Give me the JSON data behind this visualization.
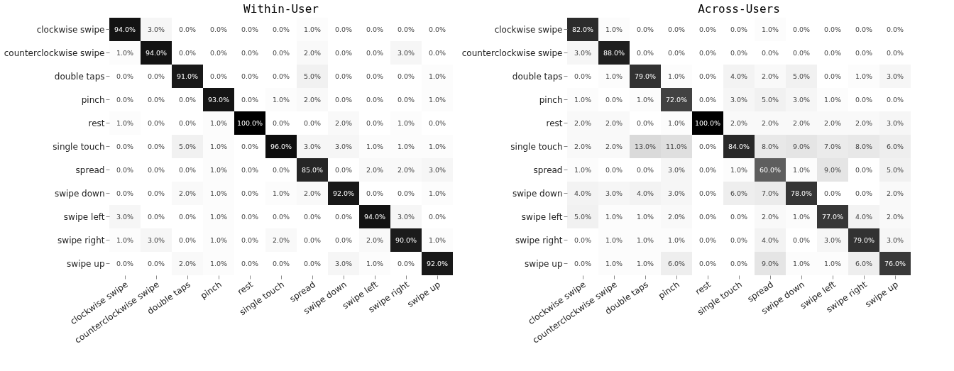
{
  "chart_data": [
    {
      "type": "heatmap",
      "title": "Within-User",
      "categories": [
        "clockwise swipe",
        "counterclockwise swipe",
        "double taps",
        "pinch",
        "rest",
        "single touch",
        "spread",
        "swipe down",
        "swipe left",
        "swipe right",
        "swipe up"
      ],
      "y_categories": [
        "clockwise swipe",
        "counterclockwise swipe",
        "double taps",
        "pinch",
        "rest",
        "single touch",
        "spread",
        "swipe down",
        "swipe left",
        "swipe right",
        "swipe up"
      ],
      "cells": [
        [
          94,
          3,
          0,
          0,
          0,
          0,
          1,
          0,
          0,
          0,
          0
        ],
        [
          1,
          94,
          0,
          0,
          0,
          0,
          2,
          0,
          0,
          3,
          0
        ],
        [
          0,
          0,
          91,
          0,
          0,
          0,
          5,
          0,
          0,
          0,
          1
        ],
        [
          0,
          0,
          0,
          93,
          0,
          1,
          2,
          0,
          0,
          0,
          1
        ],
        [
          1,
          0,
          0,
          1,
          100,
          0,
          0,
          2,
          0,
          1,
          0
        ],
        [
          0,
          0,
          5,
          1,
          0,
          96,
          3,
          3,
          1,
          1,
          1
        ],
        [
          0,
          0,
          0,
          1,
          0,
          0,
          85,
          0,
          2,
          2,
          3
        ],
        [
          0,
          0,
          2,
          1,
          0,
          1,
          2,
          92,
          0,
          0,
          1
        ],
        [
          3,
          0,
          0,
          1,
          0,
          0,
          0,
          0,
          94,
          3,
          0
        ],
        [
          1,
          3,
          0,
          1,
          0,
          2,
          0,
          0,
          2,
          90,
          1
        ],
        [
          0,
          0,
          2,
          1,
          0,
          0,
          0,
          3,
          1,
          0,
          92
        ]
      ],
      "cell_labels": [
        [
          "94.0%",
          "3.0%",
          "0.0%",
          "0.0%",
          "0.0%",
          "0.0%",
          "1.0%",
          "0.0%",
          "0.0%",
          "0.0%",
          "0.0%"
        ],
        [
          "1.0%",
          "94.0%",
          "0.0%",
          "0.0%",
          "0.0%",
          "0.0%",
          "2.0%",
          "0.0%",
          "0.0%",
          "3.0%",
          "0.0%"
        ],
        [
          "0.0%",
          "0.0%",
          "91.0%",
          "0.0%",
          "0.0%",
          "0.0%",
          "5.0%",
          "0.0%",
          "0.0%",
          "0.0%",
          "1.0%"
        ],
        [
          "0.0%",
          "0.0%",
          "0.0%",
          "93.0%",
          "0.0%",
          "1.0%",
          "2.0%",
          "0.0%",
          "0.0%",
          "0.0%",
          "1.0%"
        ],
        [
          "1.0%",
          "0.0%",
          "0.0%",
          "1.0%",
          "100.0%",
          "0.0%",
          "0.0%",
          "2.0%",
          "0.0%",
          "1.0%",
          "0.0%"
        ],
        [
          "0.0%",
          "0.0%",
          "5.0%",
          "1.0%",
          "0.0%",
          "96.0%",
          "3.0%",
          "3.0%",
          "1.0%",
          "1.0%",
          "1.0%"
        ],
        [
          "0.0%",
          "0.0%",
          "0.0%",
          "1.0%",
          "0.0%",
          "0.0%",
          "85.0%",
          "0.0%",
          "2.0%",
          "2.0%",
          "3.0%"
        ],
        [
          "0.0%",
          "0.0%",
          "2.0%",
          "1.0%",
          "0.0%",
          "1.0%",
          "2.0%",
          "92.0%",
          "0.0%",
          "0.0%",
          "1.0%"
        ],
        [
          "3.0%",
          "0.0%",
          "0.0%",
          "1.0%",
          "0.0%",
          "0.0%",
          "0.0%",
          "0.0%",
          "94.0%",
          "3.0%",
          "0.0%"
        ],
        [
          "1.0%",
          "3.0%",
          "0.0%",
          "1.0%",
          "0.0%",
          "2.0%",
          "0.0%",
          "0.0%",
          "2.0%",
          "90.0%",
          "1.0%"
        ],
        [
          "0.0%",
          "0.0%",
          "2.0%",
          "1.0%",
          "0.0%",
          "0.0%",
          "0.0%",
          "3.0%",
          "1.0%",
          "0.0%",
          "92.0%"
        ]
      ]
    },
    {
      "type": "heatmap",
      "title": "Across-Users",
      "categories": [
        "clockwise swipe",
        "counterclockwise swipe",
        "double taps",
        "pinch",
        "rest",
        "single touch",
        "spread",
        "swipe down",
        "swipe left",
        "swipe right",
        "swipe up"
      ],
      "y_categories": [
        "clockwise swipe",
        "counterclockwise swipe",
        "double taps",
        "pinch",
        "rest",
        "single touch",
        "spread",
        "swipe down",
        "swipe left",
        "swipe right",
        "swipe up"
      ],
      "cells": [
        [
          82,
          1,
          0,
          0,
          0,
          0,
          1,
          0,
          0,
          0,
          0
        ],
        [
          3,
          88,
          0,
          0,
          0,
          0,
          0,
          0,
          0,
          0,
          0
        ],
        [
          0,
          1,
          79,
          1,
          0,
          4,
          2,
          5,
          0,
          1,
          3
        ],
        [
          1,
          0,
          1,
          72,
          0,
          3,
          5,
          3,
          1,
          0,
          0
        ],
        [
          2,
          2,
          0,
          1,
          100,
          2,
          2,
          2,
          2,
          2,
          3
        ],
        [
          2,
          2,
          13,
          11,
          0,
          84,
          8,
          9,
          7,
          8,
          6
        ],
        [
          1,
          0,
          0,
          3,
          0,
          1,
          60,
          1,
          9,
          0,
          5
        ],
        [
          4,
          3,
          4,
          3,
          0,
          6,
          7,
          78,
          0,
          0,
          2
        ],
        [
          5,
          1,
          1,
          2,
          0,
          0,
          2,
          1,
          77,
          4,
          2
        ],
        [
          0,
          1,
          1,
          1,
          0,
          0,
          4,
          0,
          3,
          79,
          3
        ],
        [
          0,
          1,
          1,
          6,
          0,
          0,
          9,
          1,
          1,
          6,
          76
        ]
      ],
      "cell_labels": [
        [
          "82.0%",
          "1.0%",
          "0.0%",
          "0.0%",
          "0.0%",
          "0.0%",
          "1.0%",
          "0.0%",
          "0.0%",
          "0.0%",
          "0.0%"
        ],
        [
          "3.0%",
          "88.0%",
          "0.0%",
          "0.0%",
          "0.0%",
          "0.0%",
          "0.0%",
          "0.0%",
          "0.0%",
          "0.0%",
          "0.0%"
        ],
        [
          "0.0%",
          "1.0%",
          "79.0%",
          "1.0%",
          "0.0%",
          "4.0%",
          "2.0%",
          "5.0%",
          "0.0%",
          "1.0%",
          "3.0%"
        ],
        [
          "1.0%",
          "0.0%",
          "1.0%",
          "72.0%",
          "0.0%",
          "3.0%",
          "5.0%",
          "3.0%",
          "1.0%",
          "0.0%",
          "0.0%"
        ],
        [
          "2.0%",
          "2.0%",
          "0.0%",
          "1.0%",
          "100.0%",
          "2.0%",
          "2.0%",
          "2.0%",
          "2.0%",
          "2.0%",
          "3.0%"
        ],
        [
          "2.0%",
          "2.0%",
          "13.0%",
          "11.0%",
          "0.0%",
          "84.0%",
          "8.0%",
          "9.0%",
          "7.0%",
          "8.0%",
          "6.0%"
        ],
        [
          "1.0%",
          "0.0%",
          "0.0%",
          "3.0%",
          "0.0%",
          "1.0%",
          "60.0%",
          "1.0%",
          "9.0%",
          "0.0%",
          "5.0%"
        ],
        [
          "4.0%",
          "3.0%",
          "4.0%",
          "3.0%",
          "0.0%",
          "6.0%",
          "7.0%",
          "78.0%",
          "0.0%",
          "0.0%",
          "2.0%"
        ],
        [
          "5.0%",
          "1.0%",
          "1.0%",
          "2.0%",
          "0.0%",
          "0.0%",
          "2.0%",
          "1.0%",
          "77.0%",
          "4.0%",
          "2.0%"
        ],
        [
          "0.0%",
          "1.0%",
          "1.0%",
          "1.0%",
          "0.0%",
          "0.0%",
          "4.0%",
          "0.0%",
          "3.0%",
          "79.0%",
          "3.0%"
        ],
        [
          "0.0%",
          "1.0%",
          "1.0%",
          "6.0%",
          "0.0%",
          "0.0%",
          "9.0%",
          "1.0%",
          "1.0%",
          "6.0%",
          "76.0%"
        ]
      ]
    }
  ]
}
